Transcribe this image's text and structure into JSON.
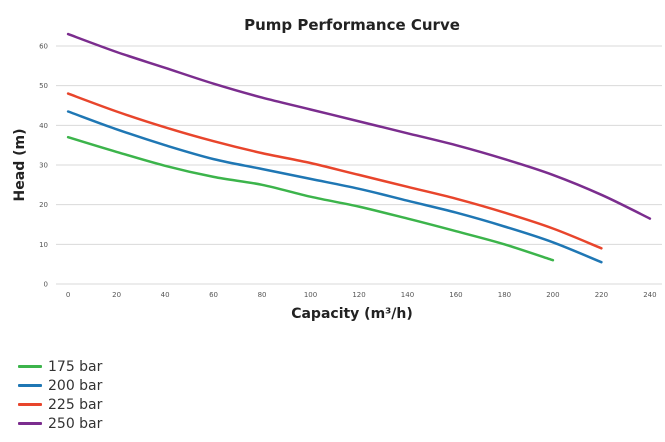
{
  "chart_data": {
    "type": "line",
    "title": "Pump Performance Curve",
    "xlabel": "Capacity (m³/h)",
    "ylabel": "Head (m)",
    "xlim": [
      -5,
      245
    ],
    "ylim": [
      0,
      60
    ],
    "xticks": [
      0,
      20,
      40,
      60,
      80,
      100,
      120,
      140,
      160,
      180,
      200,
      220,
      240
    ],
    "yticks": [
      0,
      10,
      20,
      30,
      40,
      50,
      60
    ],
    "grid": true,
    "legend_position": "bottom-left",
    "series": [
      {
        "name": "175 bar",
        "color": "#3cb44b",
        "x": [
          0,
          20,
          40,
          60,
          80,
          100,
          120,
          140,
          160,
          180,
          200
        ],
        "y": [
          37,
          33.3,
          29.8,
          27,
          25,
          22,
          19.5,
          16.5,
          13.3,
          10,
          6
        ]
      },
      {
        "name": "200 bar",
        "color": "#1f77b4",
        "x": [
          0,
          20,
          40,
          60,
          80,
          100,
          120,
          140,
          160,
          180,
          200,
          220
        ],
        "y": [
          43.5,
          39,
          35,
          31.5,
          29,
          26.5,
          24,
          21,
          18,
          14.5,
          10.5,
          5.5
        ]
      },
      {
        "name": "225 bar",
        "color": "#e8452c",
        "x": [
          0,
          20,
          40,
          60,
          80,
          100,
          120,
          140,
          160,
          180,
          200,
          220
        ],
        "y": [
          48,
          43.5,
          39.5,
          36,
          33,
          30.5,
          27.5,
          24.5,
          21.5,
          18,
          14,
          9
        ]
      },
      {
        "name": "250 bar",
        "color": "#7b2d8e",
        "x": [
          0,
          20,
          40,
          60,
          80,
          100,
          120,
          140,
          160,
          180,
          200,
          220,
          240
        ],
        "y": [
          63,
          58.5,
          54.5,
          50.5,
          47,
          44,
          41,
          38,
          35,
          31.5,
          27.5,
          22.5,
          16.5
        ]
      }
    ]
  }
}
